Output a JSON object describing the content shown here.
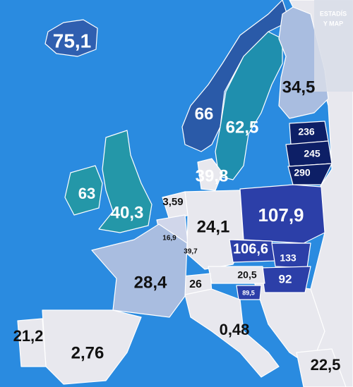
{
  "watermark": {
    "line1": "ESTADÍS",
    "line2": "Y MAP"
  },
  "map": {
    "labels": [
      "75,1",
      "66",
      "62,5",
      "34,5",
      "236",
      "245",
      "290",
      "63",
      "40,3",
      "39,8",
      "3,59",
      "16,9",
      "39,7",
      "24,1",
      "107,9",
      "106,6",
      "133",
      "92",
      "20,5",
      "89,5",
      "26",
      "28,4",
      "0,48",
      "21,2",
      "2,76",
      "22,5"
    ]
  }
}
